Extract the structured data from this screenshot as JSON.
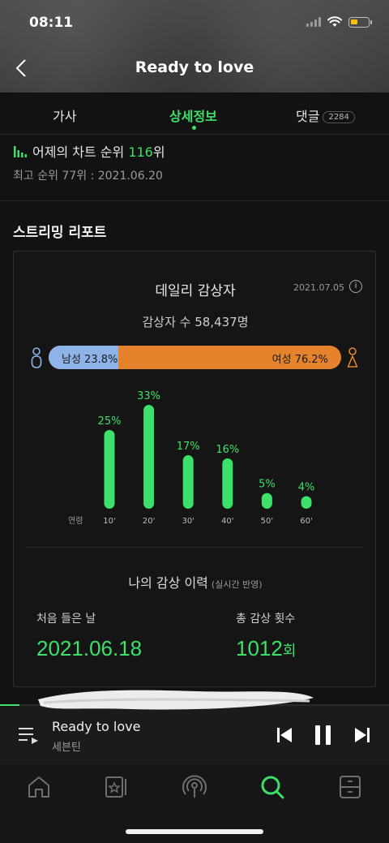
{
  "status": {
    "time": "08:11"
  },
  "header": {
    "title": "Ready to love"
  },
  "tabs": [
    {
      "label": "가사"
    },
    {
      "label": "상세정보"
    },
    {
      "label": "댓글",
      "count": "2284"
    }
  ],
  "rank": {
    "prefix": "어제의 차트 순위 ",
    "value": "116",
    "suffix": "위",
    "best": "최고 순위 77위 : 2021.06.20"
  },
  "section": {
    "title": "스트리밍 리포트"
  },
  "daily": {
    "title": "데일리 감상자",
    "date": "2021.07.05",
    "info_glyph": "i",
    "listeners": "감상자 수 58,437명",
    "male_label": "남성 23.8%",
    "female_label": "여성 76.2%",
    "male_pct": 23.8,
    "female_pct": 76.2,
    "male_color": "#8db3e8",
    "female_color": "#e5832d"
  },
  "chart_data": {
    "type": "bar",
    "xlabel": "연령",
    "categories": [
      "10'",
      "20'",
      "30'",
      "40'",
      "50'",
      "60'"
    ],
    "values": [
      25,
      33,
      17,
      16,
      5,
      4
    ],
    "value_labels": [
      "25%",
      "33%",
      "17%",
      "16%",
      "5%",
      "4%"
    ],
    "ylim": [
      0,
      33
    ],
    "grid": false,
    "bar_color": "#3de06a"
  },
  "history": {
    "title": "나의 감상 이력",
    "note": "(실시간 반영)",
    "first_label": "처음 들은 날",
    "first_value": "2021.06.18",
    "total_label": "총 감상 횟수",
    "total_value": "1012",
    "total_unit": "회"
  },
  "player": {
    "title": "Ready to love",
    "artist": "세븐틴",
    "progress_fraction": 0.05
  },
  "accent": "#3de06a"
}
